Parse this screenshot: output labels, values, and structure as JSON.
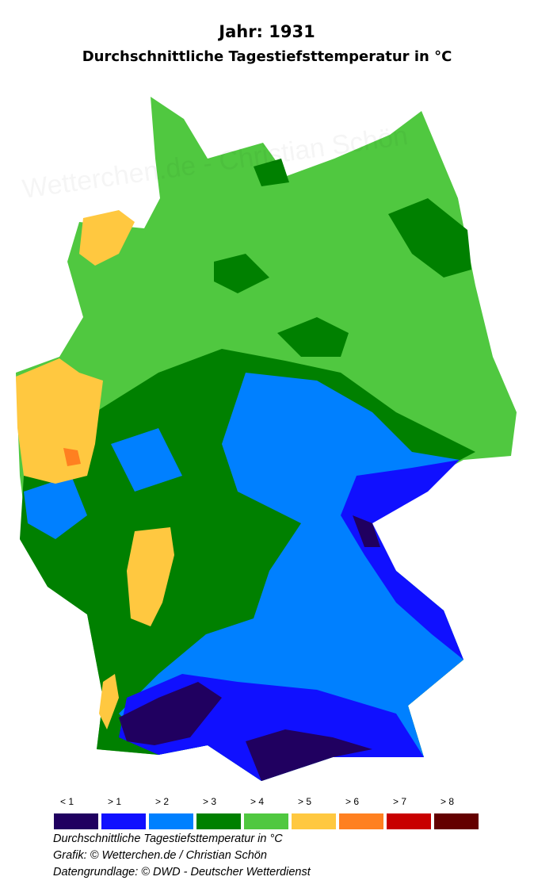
{
  "header": {
    "title": "Jahr: 1931",
    "subtitle": "Durchschnittliche Tagestiefsttemperatur in °C"
  },
  "legend": [
    {
      "label": "< 1",
      "color": "#200060"
    },
    {
      "label": "> 1",
      "color": "#1010ff"
    },
    {
      "label": "> 2",
      "color": "#0080ff"
    },
    {
      "label": "> 3",
      "color": "#008000"
    },
    {
      "label": "> 4",
      "color": "#50c840"
    },
    {
      "label": "> 5",
      "color": "#ffc840"
    },
    {
      "label": "> 6",
      "color": "#ff8020"
    },
    {
      "label": "> 7",
      "color": "#c80000"
    },
    {
      "label": "> 8",
      "color": "#640000"
    }
  ],
  "footer": {
    "line1": "Durchschnittliche Tagestiefsttemperatur in °C",
    "line2": "Grafik: © Wetterchen.de / Christian Schön",
    "line3": "Datengrundlage: © DWD - Deutscher Wetterdienst"
  },
  "watermark": "Wetterchen.de - Christian Schön"
}
